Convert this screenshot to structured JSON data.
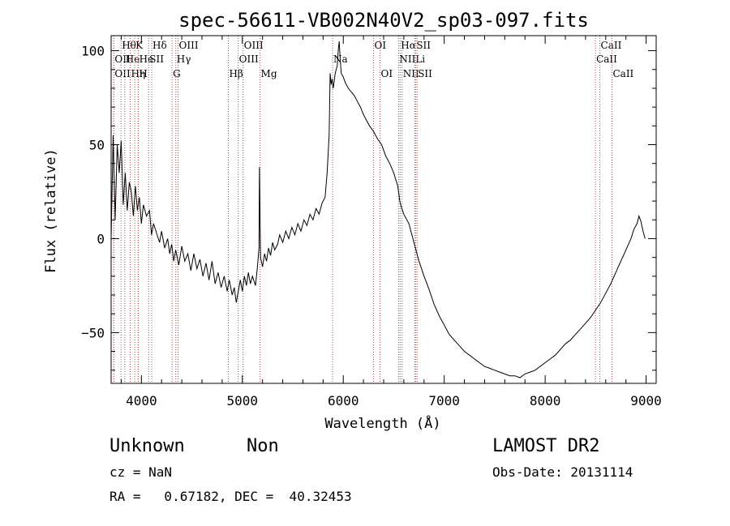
{
  "chart_data": {
    "type": "line",
    "title": "spec-56611-VB002N40V2_sp03-097.fits",
    "xlabel": "Wavelength (Å)",
    "ylabel": "Flux (relative)",
    "xlim": [
      3700,
      9100
    ],
    "ylim": [
      -77,
      108
    ],
    "x_major_ticks": [
      4000,
      5000,
      6000,
      7000,
      8000,
      9000
    ],
    "y_major_ticks": [
      -50,
      0,
      50,
      100
    ],
    "x_minor_step": 200,
    "y_minor_step": 10,
    "line_color": "#000000",
    "marker_color": "#a05050",
    "series": [
      {
        "points": [
          [
            3700,
            0
          ],
          [
            3720,
            55
          ],
          [
            3740,
            10
          ],
          [
            3760,
            50
          ],
          [
            3780,
            35
          ],
          [
            3800,
            52
          ],
          [
            3820,
            18
          ],
          [
            3840,
            35
          ],
          [
            3860,
            15
          ],
          [
            3880,
            30
          ],
          [
            3900,
            25
          ],
          [
            3920,
            12
          ],
          [
            3940,
            28
          ],
          [
            3960,
            15
          ],
          [
            3980,
            22
          ],
          [
            4000,
            8
          ],
          [
            4020,
            18
          ],
          [
            4050,
            12
          ],
          [
            4080,
            15
          ],
          [
            4100,
            2
          ],
          [
            4120,
            8
          ],
          [
            4150,
            3
          ],
          [
            4180,
            -2
          ],
          [
            4200,
            4
          ],
          [
            4230,
            -5
          ],
          [
            4260,
            0
          ],
          [
            4280,
            -8
          ],
          [
            4300,
            -3
          ],
          [
            4320,
            -12
          ],
          [
            4340,
            -6
          ],
          [
            4370,
            -14
          ],
          [
            4400,
            -4
          ],
          [
            4430,
            -12
          ],
          [
            4460,
            -8
          ],
          [
            4490,
            -17
          ],
          [
            4520,
            -8
          ],
          [
            4550,
            -16
          ],
          [
            4580,
            -11
          ],
          [
            4610,
            -20
          ],
          [
            4640,
            -13
          ],
          [
            4670,
            -22
          ],
          [
            4700,
            -12
          ],
          [
            4730,
            -24
          ],
          [
            4760,
            -18
          ],
          [
            4790,
            -26
          ],
          [
            4820,
            -20
          ],
          [
            4850,
            -28
          ],
          [
            4870,
            -22
          ],
          [
            4900,
            -30
          ],
          [
            4920,
            -26
          ],
          [
            4940,
            -34
          ],
          [
            4960,
            -28
          ],
          [
            4980,
            -22
          ],
          [
            5000,
            -28
          ],
          [
            5020,
            -20
          ],
          [
            5040,
            -25
          ],
          [
            5060,
            -18
          ],
          [
            5080,
            -24
          ],
          [
            5100,
            -20
          ],
          [
            5130,
            -25
          ],
          [
            5150,
            -15
          ],
          [
            5165,
            -5
          ],
          [
            5170,
            38
          ],
          [
            5180,
            -10
          ],
          [
            5200,
            -15
          ],
          [
            5220,
            -8
          ],
          [
            5240,
            -12
          ],
          [
            5260,
            -5
          ],
          [
            5280,
            -9
          ],
          [
            5300,
            -2
          ],
          [
            5320,
            -6
          ],
          [
            5350,
            -3
          ],
          [
            5370,
            2
          ],
          [
            5400,
            -2
          ],
          [
            5430,
            4
          ],
          [
            5460,
            0
          ],
          [
            5490,
            6
          ],
          [
            5520,
            2
          ],
          [
            5550,
            8
          ],
          [
            5580,
            4
          ],
          [
            5610,
            10
          ],
          [
            5640,
            7
          ],
          [
            5670,
            13
          ],
          [
            5700,
            10
          ],
          [
            5730,
            16
          ],
          [
            5760,
            13
          ],
          [
            5790,
            19
          ],
          [
            5820,
            22
          ],
          [
            5840,
            35
          ],
          [
            5860,
            55
          ],
          [
            5870,
            88
          ],
          [
            5880,
            82
          ],
          [
            5890,
            85
          ],
          [
            5900,
            80
          ],
          [
            5920,
            88
          ],
          [
            5940,
            92
          ],
          [
            5950,
            100
          ],
          [
            5960,
            105
          ],
          [
            5970,
            95
          ],
          [
            5980,
            88
          ],
          [
            6000,
            86
          ],
          [
            6020,
            83
          ],
          [
            6050,
            80
          ],
          [
            6080,
            78
          ],
          [
            6110,
            76
          ],
          [
            6140,
            73
          ],
          [
            6170,
            70
          ],
          [
            6200,
            66
          ],
          [
            6230,
            63
          ],
          [
            6260,
            60
          ],
          [
            6300,
            57
          ],
          [
            6340,
            53
          ],
          [
            6380,
            50
          ],
          [
            6420,
            44
          ],
          [
            6460,
            40
          ],
          [
            6500,
            35
          ],
          [
            6540,
            28
          ],
          [
            6560,
            20
          ],
          [
            6580,
            16
          ],
          [
            6600,
            13
          ],
          [
            6650,
            8
          ],
          [
            6700,
            -2
          ],
          [
            6750,
            -12
          ],
          [
            6800,
            -20
          ],
          [
            6850,
            -27
          ],
          [
            6900,
            -35
          ],
          [
            6950,
            -41
          ],
          [
            7000,
            -46
          ],
          [
            7050,
            -51
          ],
          [
            7100,
            -54
          ],
          [
            7150,
            -57
          ],
          [
            7200,
            -60
          ],
          [
            7250,
            -62
          ],
          [
            7300,
            -64
          ],
          [
            7350,
            -66
          ],
          [
            7400,
            -68
          ],
          [
            7450,
            -69
          ],
          [
            7500,
            -70
          ],
          [
            7550,
            -71
          ],
          [
            7600,
            -72
          ],
          [
            7650,
            -73
          ],
          [
            7700,
            -73
          ],
          [
            7750,
            -74
          ],
          [
            7800,
            -72
          ],
          [
            7850,
            -71
          ],
          [
            7900,
            -70
          ],
          [
            7950,
            -68
          ],
          [
            8000,
            -66
          ],
          [
            8050,
            -64
          ],
          [
            8100,
            -62
          ],
          [
            8150,
            -59
          ],
          [
            8200,
            -56
          ],
          [
            8250,
            -54
          ],
          [
            8300,
            -51
          ],
          [
            8350,
            -48
          ],
          [
            8400,
            -45
          ],
          [
            8450,
            -42
          ],
          [
            8500,
            -38
          ],
          [
            8550,
            -34
          ],
          [
            8600,
            -29
          ],
          [
            8650,
            -24
          ],
          [
            8700,
            -18
          ],
          [
            8750,
            -12
          ],
          [
            8800,
            -6
          ],
          [
            8850,
            0
          ],
          [
            8880,
            5
          ],
          [
            8910,
            8
          ],
          [
            8930,
            12
          ],
          [
            8950,
            9
          ],
          [
            8970,
            4
          ],
          [
            8990,
            0
          ]
        ]
      }
    ],
    "lines": [
      {
        "label": "Hθ",
        "x": 3798,
        "row": 0
      },
      {
        "label": "OII",
        "x": 3727,
        "row": 1
      },
      {
        "label": "OII",
        "x": 3727,
        "row": 2
      },
      {
        "label": "He",
        "x": 3835,
        "row": 1
      },
      {
        "label": "Hη",
        "x": 3889,
        "row": 2
      },
      {
        "label": "K",
        "x": 3934,
        "row": 0
      },
      {
        "label": "He",
        "x": 3970,
        "row": 1
      },
      {
        "label": "H",
        "x": 3968,
        "row": 2
      },
      {
        "label": "Hδ",
        "x": 4102,
        "row": 0
      },
      {
        "label": "SII",
        "x": 4072,
        "row": 1
      },
      {
        "label": "OIII",
        "x": 4363,
        "row": 0
      },
      {
        "label": "Hγ",
        "x": 4341,
        "row": 1
      },
      {
        "label": "G",
        "x": 4304,
        "row": 2
      },
      {
        "label": "Hβ",
        "x": 4861,
        "row": 2
      },
      {
        "label": "OIII",
        "x": 5007,
        "row": 0
      },
      {
        "label": "OIII",
        "x": 4959,
        "row": 1
      },
      {
        "label": "Mg",
        "x": 5175,
        "row": 2
      },
      {
        "label": "Na",
        "x": 5894,
        "row": 1
      },
      {
        "label": "OI",
        "x": 6300,
        "row": 0
      },
      {
        "label": "OI",
        "x": 6364,
        "row": 2
      },
      {
        "label": "Hα",
        "x": 6563,
        "row": 0
      },
      {
        "label": "NII",
        "x": 6548,
        "row": 1
      },
      {
        "label": "NII",
        "x": 6583,
        "row": 2
      },
      {
        "label": "SII",
        "x": 6716,
        "row": 0
      },
      {
        "label": "Li",
        "x": 6708,
        "row": 1
      },
      {
        "label": "SII",
        "x": 6731,
        "row": 2
      },
      {
        "label": "CaII",
        "x": 8542,
        "row": 0
      },
      {
        "label": "CaII",
        "x": 8498,
        "row": 1
      },
      {
        "label": "CaII",
        "x": 8662,
        "row": 2
      }
    ]
  },
  "info": {
    "class": "Unknown",
    "subclass": "Non",
    "survey": "LAMOST DR2",
    "cz": "cz = NaN",
    "obs_date": "Obs-Date: 20131114",
    "radec": "RA =   0.67182, DEC =  40.32453"
  }
}
